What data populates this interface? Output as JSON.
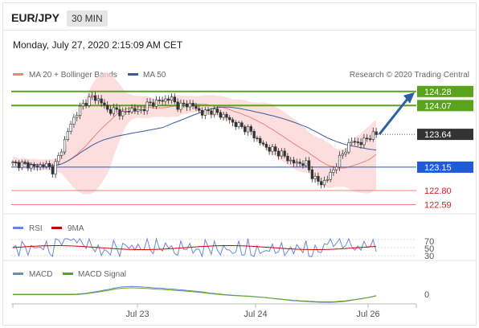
{
  "header": {
    "pair": "EUR/JPY",
    "timeframe": "30 MIN"
  },
  "datetime": "Monday, July 27, 2020 2:15:09 AM CET",
  "legend": {
    "ma20_label": "MA 20 + Bollinger Bands",
    "ma50_label": "MA 50",
    "credit": "Research © 2020 Trading Central"
  },
  "colors": {
    "ma20": "#f08080",
    "bollinger_fill": "#fbd3d3",
    "ma50": "#3b5b9a",
    "green_level": "#5aa31c",
    "blue_level": "#1f5bd8",
    "red_level": "#f08080",
    "current_bg": "#333333",
    "arrow": "#2d5fa6"
  },
  "chart_data": [
    {
      "type": "candlestick",
      "series_names": [
        "MA 20 + Bollinger Bands",
        "MA 50"
      ],
      "x_tick_labels": [
        "Jul 23",
        "Jul 24",
        "Jul 26"
      ],
      "ylim": [
        122.5,
        124.35
      ],
      "levels": [
        {
          "label": "124.28",
          "value": 124.28,
          "kind": "resistance"
        },
        {
          "label": "124.07",
          "value": 124.07,
          "kind": "resistance"
        },
        {
          "label": "123.64",
          "value": 123.64,
          "kind": "current"
        },
        {
          "label": "123.15",
          "value": 123.15,
          "kind": "pivot"
        },
        {
          "label": "122.80",
          "value": 122.8,
          "kind": "support"
        },
        {
          "label": "122.59",
          "value": 122.59,
          "kind": "support"
        }
      ],
      "price_path": [
        123.2,
        123.2,
        123.18,
        123.15,
        123.2,
        123.1,
        123.35,
        123.7,
        123.95,
        124.1,
        124.2,
        124.15,
        124.0,
        124.0,
        123.95,
        124.02,
        123.98,
        124.08,
        124.12,
        124.15,
        124.18,
        124.05,
        124.1,
        124.05,
        123.95,
        124.0,
        123.95,
        123.9,
        123.8,
        123.75,
        123.7,
        123.55,
        123.45,
        123.4,
        123.35,
        123.25,
        123.2,
        123.22,
        123.0,
        122.9,
        123.0,
        123.2,
        123.4,
        123.55,
        123.5,
        123.6,
        123.64
      ],
      "annotation": "arrow pointing up toward 124.28"
    },
    {
      "type": "line",
      "series": [
        {
          "name": "RSI"
        },
        {
          "name": "9MA"
        }
      ],
      "y_tick_labels": [
        "70",
        "50",
        "30"
      ],
      "ylim": [
        25,
        75
      ]
    },
    {
      "type": "line",
      "series": [
        {
          "name": "MACD"
        },
        {
          "name": "MACD Signal"
        }
      ],
      "y_tick_labels": [
        "0"
      ]
    }
  ],
  "indicators": {
    "rsi_label": "RSI",
    "rsi_ma_label": "9MA",
    "rsi_ticks": [
      "70",
      "50",
      "30"
    ],
    "macd_label": "MACD",
    "macd_signal_label": "MACD Signal",
    "macd_ticks": [
      "0"
    ]
  },
  "x_axis": {
    "labels": [
      "Jul 23",
      "Jul 24",
      "Jul 26"
    ]
  }
}
